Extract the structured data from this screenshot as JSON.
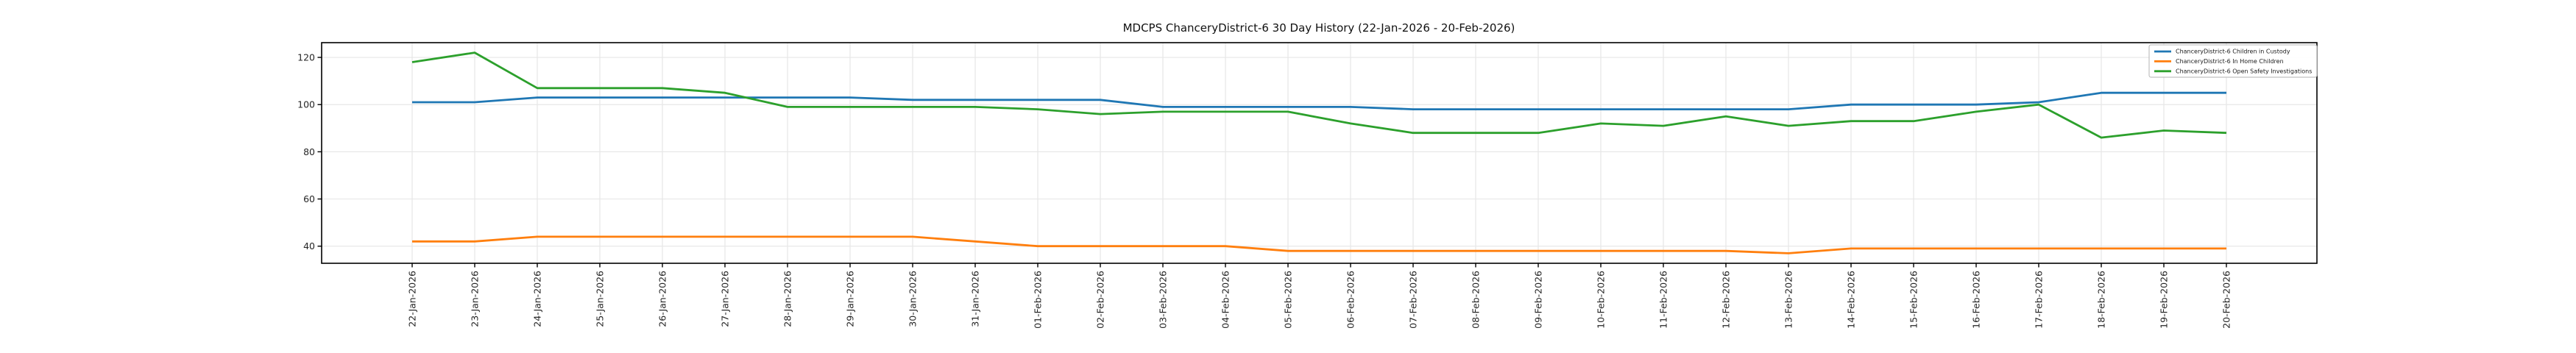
{
  "chart_data": {
    "type": "line",
    "title": "MDCPS ChanceryDistrict-6 30 Day History (22-Jan-2026 - 20-Feb-2026)",
    "categories": [
      "22-Jan-2026",
      "23-Jan-2026",
      "24-Jan-2026",
      "25-Jan-2026",
      "26-Jan-2026",
      "27-Jan-2026",
      "28-Jan-2026",
      "29-Jan-2026",
      "30-Jan-2026",
      "31-Jan-2026",
      "01-Feb-2026",
      "02-Feb-2026",
      "03-Feb-2026",
      "04-Feb-2026",
      "05-Feb-2026",
      "06-Feb-2026",
      "07-Feb-2026",
      "08-Feb-2026",
      "09-Feb-2026",
      "10-Feb-2026",
      "11-Feb-2026",
      "12-Feb-2026",
      "13-Feb-2026",
      "14-Feb-2026",
      "15-Feb-2026",
      "16-Feb-2026",
      "17-Feb-2026",
      "18-Feb-2026",
      "19-Feb-2026",
      "20-Feb-2026"
    ],
    "series": [
      {
        "name": "ChanceryDistrict-6 Children in Custody",
        "color": "#1f77b4",
        "values": [
          101,
          101,
          103,
          103,
          103,
          103,
          103,
          103,
          102,
          102,
          102,
          102,
          99,
          99,
          99,
          99,
          98,
          98,
          98,
          98,
          98,
          98,
          98,
          100,
          100,
          100,
          101,
          105,
          105,
          105
        ]
      },
      {
        "name": "ChanceryDistrict-6 In Home Children",
        "color": "#ff7f0e",
        "values": [
          42,
          42,
          44,
          44,
          44,
          44,
          44,
          44,
          44,
          42,
          40,
          40,
          40,
          40,
          38,
          38,
          38,
          38,
          38,
          38,
          38,
          38,
          37,
          39,
          39,
          39,
          39,
          39,
          39,
          39
        ]
      },
      {
        "name": "ChanceryDistrict-6 Open Safety Investigations",
        "color": "#2ca02c",
        "values": [
          118,
          122,
          107,
          107,
          107,
          105,
          99,
          99,
          99,
          99,
          98,
          96,
          97,
          97,
          97,
          92,
          88,
          88,
          88,
          92,
          91,
          95,
          91,
          93,
          93,
          97,
          100,
          86,
          89,
          88
        ]
      }
    ],
    "yticks": [
      40,
      60,
      80,
      100,
      120
    ],
    "ylim": [
      32.75,
      126.25
    ],
    "grid": true,
    "legend_position": "upper right",
    "colors": {
      "background": "#ffffff",
      "grid": "#e7e7e7",
      "spine": "#000000",
      "tick_label": "#262626",
      "title": "#111111",
      "legend_border": "#b3b3b3",
      "legend_bg": "#ffffff"
    }
  }
}
